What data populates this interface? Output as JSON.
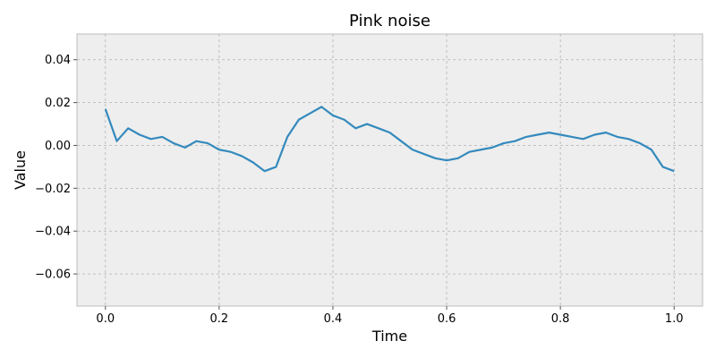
{
  "chart_data": {
    "type": "line",
    "title": "Pink noise",
    "xlabel": "Time",
    "ylabel": "Value",
    "xlim": [
      -0.05,
      1.05
    ],
    "ylim": [
      -0.075,
      0.052
    ],
    "x_ticks": [
      0.0,
      0.2,
      0.4,
      0.6,
      0.8,
      1.0
    ],
    "x_tick_labels": [
      "0.0",
      "0.2",
      "0.4",
      "0.6",
      "0.8",
      "1.0"
    ],
    "y_ticks": [
      -0.06,
      -0.04,
      -0.02,
      0.0,
      0.02,
      0.04
    ],
    "y_tick_labels": [
      "−0.06",
      "−0.04",
      "−0.02",
      "0.00",
      "0.02",
      "0.04"
    ],
    "grid": true,
    "legend": false,
    "colors": {
      "line": "#348abd",
      "plot_bg": "#eeeeee",
      "grid": "#b2b2b2",
      "spine": "#bcbcbc"
    },
    "series": [
      {
        "x": [
          0.0,
          0.02,
          0.04,
          0.06,
          0.08,
          0.1,
          0.12,
          0.14,
          0.16,
          0.18,
          0.2,
          0.22,
          0.24,
          0.26,
          0.28,
          0.3,
          0.32,
          0.34,
          0.36,
          0.38,
          0.4,
          0.42,
          0.44,
          0.46,
          0.48,
          0.5,
          0.52,
          0.54,
          0.56,
          0.58,
          0.6,
          0.62,
          0.64,
          0.66,
          0.68,
          0.7,
          0.72,
          0.74,
          0.76,
          0.78,
          0.8,
          0.82,
          0.84,
          0.86,
          0.88,
          0.9,
          0.92,
          0.94,
          0.96,
          0.98,
          1.0
        ],
        "y": [
          0.017,
          0.002,
          0.008,
          0.005,
          0.003,
          0.004,
          0.001,
          -0.001,
          0.002,
          0.001,
          -0.002,
          -0.003,
          -0.005,
          -0.008,
          -0.012,
          -0.01,
          0.004,
          0.012,
          0.015,
          0.018,
          0.014,
          0.012,
          0.008,
          0.01,
          0.008,
          0.006,
          0.002,
          -0.002,
          -0.004,
          -0.006,
          -0.007,
          -0.006,
          -0.003,
          -0.002,
          -0.001,
          0.001,
          0.002,
          0.004,
          0.005,
          0.006,
          0.005,
          0.004,
          0.003,
          0.005,
          0.006,
          0.004,
          0.003,
          0.001,
          -0.002,
          -0.01,
          -0.012
        ]
      }
    ]
  }
}
